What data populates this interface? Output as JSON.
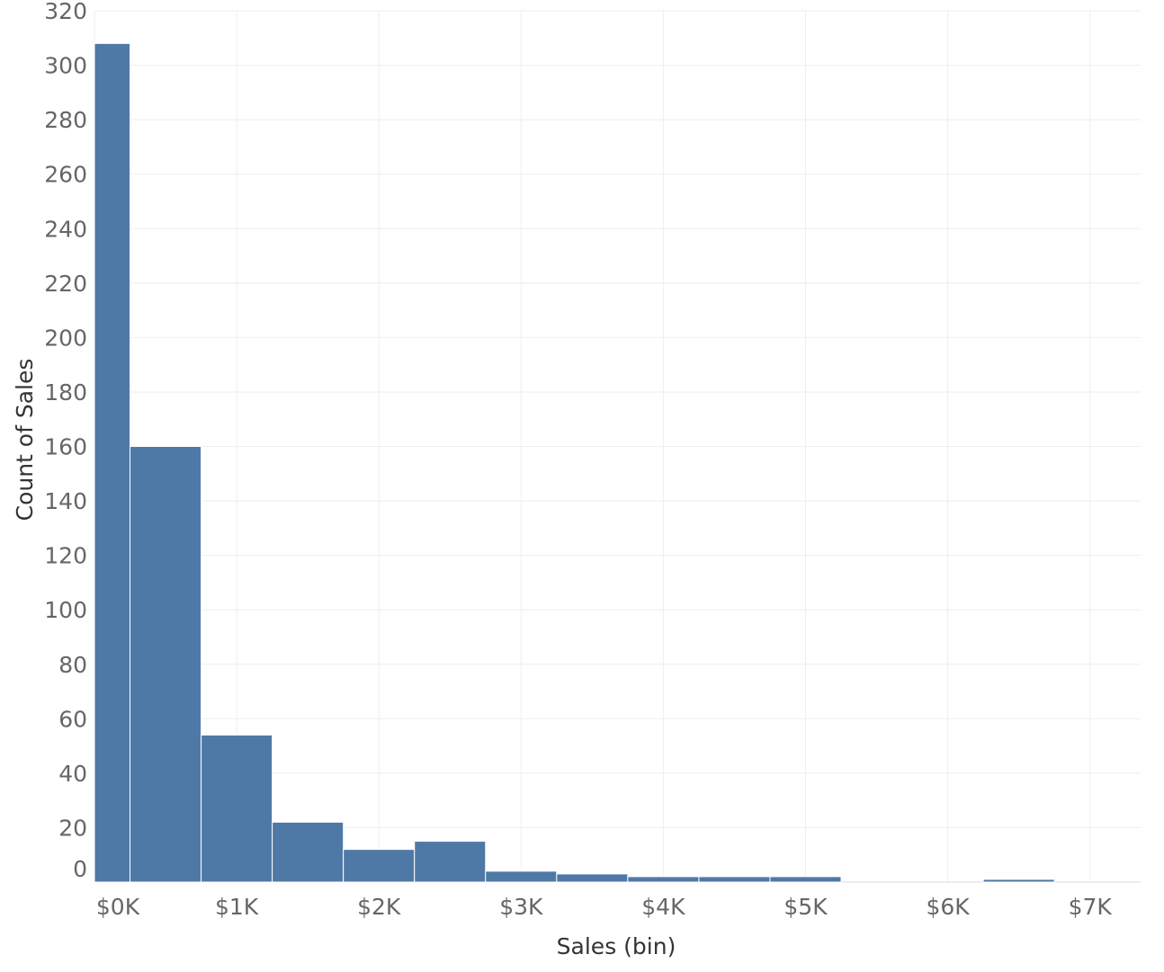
{
  "chart_data": {
    "type": "bar",
    "title": "",
    "xlabel": "Sales (bin)",
    "ylabel": "Count of Sales",
    "bin_width": 500,
    "xlim": [
      -167,
      7167
    ],
    "ylim": [
      0,
      320
    ],
    "x_ticks": [
      {
        "value": 0,
        "label": "$0K"
      },
      {
        "value": 1000,
        "label": "$1K"
      },
      {
        "value": 2000,
        "label": "$2K"
      },
      {
        "value": 3000,
        "label": "$3K"
      },
      {
        "value": 4000,
        "label": "$4K"
      },
      {
        "value": 5000,
        "label": "$5K"
      },
      {
        "value": 6000,
        "label": "$6K"
      },
      {
        "value": 7000,
        "label": "$7K"
      }
    ],
    "y_ticks": [
      {
        "value": 0,
        "label": "0"
      },
      {
        "value": 20,
        "label": "20"
      },
      {
        "value": 40,
        "label": "40"
      },
      {
        "value": 60,
        "label": "60"
      },
      {
        "value": 80,
        "label": "80"
      },
      {
        "value": 100,
        "label": "100"
      },
      {
        "value": 120,
        "label": "120"
      },
      {
        "value": 140,
        "label": "140"
      },
      {
        "value": 160,
        "label": "160"
      },
      {
        "value": 180,
        "label": "180"
      },
      {
        "value": 200,
        "label": "200"
      },
      {
        "value": 220,
        "label": "220"
      },
      {
        "value": 240,
        "label": "240"
      },
      {
        "value": 260,
        "label": "260"
      },
      {
        "value": 280,
        "label": "280"
      },
      {
        "value": 300,
        "label": "300"
      },
      {
        "value": 320,
        "label": "320"
      }
    ],
    "bins": [
      {
        "start": 0,
        "count": 308
      },
      {
        "start": 500,
        "count": 160
      },
      {
        "start": 1000,
        "count": 54
      },
      {
        "start": 1500,
        "count": 22
      },
      {
        "start": 2000,
        "count": 12
      },
      {
        "start": 2500,
        "count": 15
      },
      {
        "start": 3000,
        "count": 4
      },
      {
        "start": 3500,
        "count": 3
      },
      {
        "start": 4000,
        "count": 2
      },
      {
        "start": 4500,
        "count": 2
      },
      {
        "start": 5000,
        "count": 2
      },
      {
        "start": 5500,
        "count": 0
      },
      {
        "start": 6000,
        "count": 0
      },
      {
        "start": 6500,
        "count": 1
      }
    ],
    "grid": true,
    "colors": {
      "bar": "#4e79a7",
      "grid": "#eeeeee",
      "tick_text": "#666666",
      "axis_title": "#333333"
    }
  }
}
